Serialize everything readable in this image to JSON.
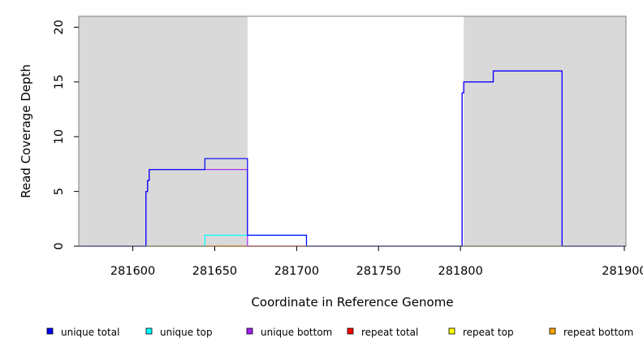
{
  "chart_data": {
    "type": "line",
    "xlabel": "Coordinate in Reference Genome",
    "ylabel": "Read Coverage Depth",
    "xlim": [
      281567,
      281901
    ],
    "ylim": [
      0,
      21
    ],
    "x_ticks": [
      281600,
      281650,
      281700,
      281750,
      281800,
      281900
    ],
    "x_tick_labels": [
      "281600",
      "281650",
      "281700",
      "281750",
      "281800",
      "281900"
    ],
    "y_ticks": [
      0,
      5,
      10,
      15,
      20
    ],
    "y_tick_labels": [
      "0",
      "5",
      "10",
      "15",
      "20"
    ],
    "grid": false,
    "shaded_regions": [
      {
        "x": [
          281567,
          281670
        ],
        "color": "#d9d9d9"
      },
      {
        "x": [
          281802,
          281901
        ],
        "color": "#d9d9d9"
      }
    ],
    "series": [
      {
        "name": "unique total",
        "color": "#0000ff",
        "x": [
          281567,
          281608,
          281608,
          281609,
          281609,
          281610,
          281610,
          281644,
          281644,
          281670,
          281670,
          281706,
          281706,
          281801,
          281801,
          281802,
          281802,
          281820,
          281820,
          281862,
          281862,
          281901
        ],
        "y": [
          0,
          0,
          5,
          5,
          6,
          6,
          7,
          7,
          8,
          8,
          1,
          1,
          0,
          0,
          14,
          14,
          15,
          15,
          16,
          16,
          0,
          0
        ]
      },
      {
        "name": "unique top",
        "color": "#00ffff",
        "x": [
          281567,
          281644,
          281644,
          281706,
          281706,
          281901
        ],
        "y": [
          0,
          0,
          1,
          1,
          0,
          0
        ]
      },
      {
        "name": "unique bottom",
        "color": "#a020f0",
        "x": [
          281567,
          281608,
          281608,
          281609,
          281609,
          281610,
          281610,
          281670,
          281670,
          281801,
          281801,
          281802,
          281802,
          281820,
          281820,
          281862,
          281862,
          281901
        ],
        "y": [
          0,
          0,
          5,
          5,
          6,
          6,
          7,
          7,
          0,
          0,
          14,
          14,
          15,
          15,
          16,
          16,
          0,
          0
        ]
      },
      {
        "name": "repeat total",
        "color": "#ff0000",
        "x": [
          281567,
          281901
        ],
        "y": [
          0,
          0
        ]
      },
      {
        "name": "repeat top",
        "color": "#ffff00",
        "x": [
          281567,
          281901
        ],
        "y": [
          0,
          0
        ]
      },
      {
        "name": "repeat bottom",
        "color": "#ffa500",
        "x": [
          281567,
          281901
        ],
        "y": [
          0,
          0
        ]
      }
    ],
    "legend": {
      "placement": "bottom",
      "entries": [
        {
          "label": "unique total",
          "color": "#0000ff"
        },
        {
          "label": "unique top",
          "color": "#00ffff"
        },
        {
          "label": "unique bottom",
          "color": "#a020f0"
        },
        {
          "label": "repeat total",
          "color": "#ff0000"
        },
        {
          "label": "repeat top",
          "color": "#ffff00"
        },
        {
          "label": "repeat bottom",
          "color": "#ffa500"
        }
      ]
    }
  }
}
